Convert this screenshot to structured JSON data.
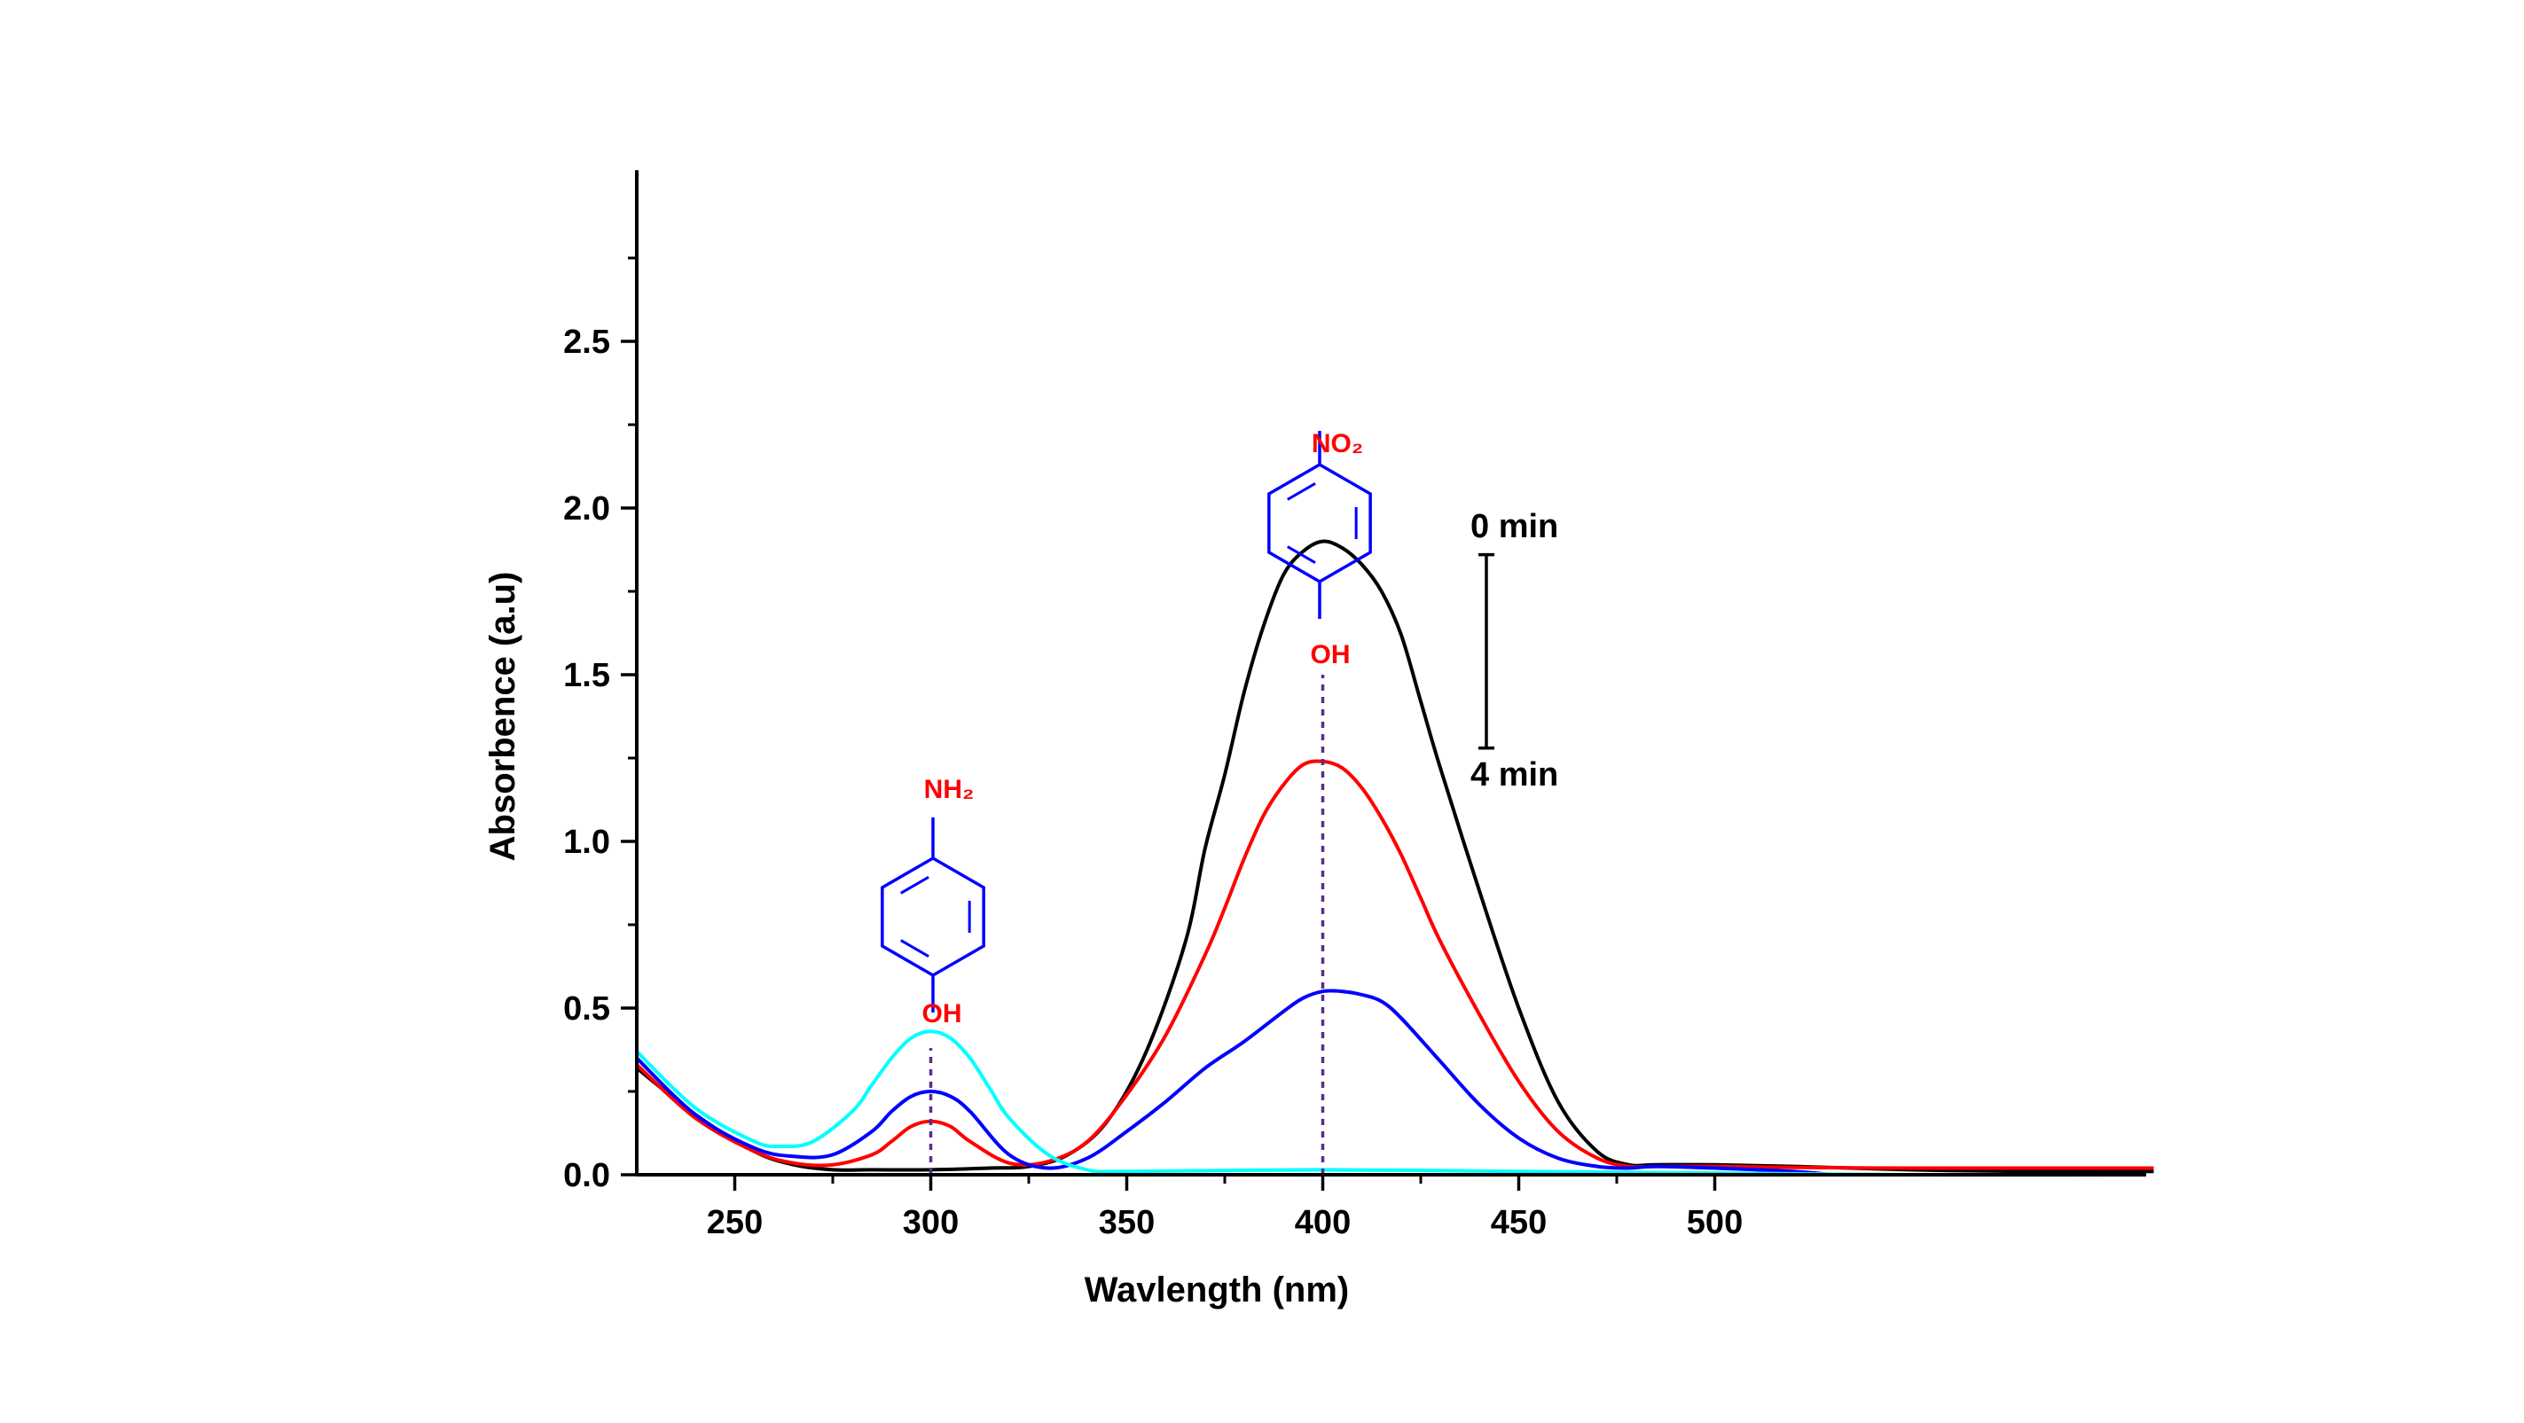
{
  "chart_data": {
    "type": "line",
    "title": "",
    "xlabel": "Wavlength (nm)",
    "ylabel": "Absorbence (a.u)",
    "xlim": [
      225,
      612
    ],
    "ylim": [
      0,
      3.0
    ],
    "xticks_major": [
      250,
      300,
      350,
      400,
      450,
      500
    ],
    "xticks_minor": [
      275,
      325,
      375,
      425,
      475
    ],
    "yticks_labeled": [
      0.0,
      0.5,
      1.0,
      1.5,
      2.0,
      2.5
    ],
    "yticks_labels": [
      "0.0",
      "0.5",
      "1.0",
      "1.5",
      "2.0",
      "2.5"
    ],
    "yticks_minor": [
      0.25,
      0.75,
      1.25,
      1.75,
      2.25,
      2.75
    ],
    "grid": false,
    "legend": "none",
    "series": [
      {
        "color": "#000000",
        "x": [
          225,
          240,
          255,
          265,
          275,
          285,
          300,
          315,
          325,
          335,
          345,
          355,
          365,
          370,
          375,
          380,
          385,
          390,
          395,
          400,
          405,
          410,
          415,
          420,
          425,
          430,
          440,
          450,
          460,
          470,
          478,
          485,
          500,
          520,
          550,
          580,
          612
        ],
        "y": [
          0.32,
          0.18,
          0.07,
          0.03,
          0.015,
          0.015,
          0.015,
          0.02,
          0.025,
          0.06,
          0.16,
          0.37,
          0.7,
          0.98,
          1.2,
          1.45,
          1.65,
          1.8,
          1.87,
          1.9,
          1.88,
          1.83,
          1.75,
          1.62,
          1.42,
          1.22,
          0.85,
          0.5,
          0.22,
          0.07,
          0.03,
          0.03,
          0.03,
          0.025,
          0.015,
          0.01,
          0.01
        ]
      },
      {
        "color": "#ff0000",
        "x": [
          225,
          240,
          255,
          265,
          275,
          285,
          290,
          295,
          300,
          305,
          310,
          320,
          330,
          340,
          350,
          360,
          370,
          375,
          380,
          385,
          390,
          395,
          400,
          405,
          410,
          415,
          420,
          425,
          430,
          440,
          450,
          460,
          470,
          478,
          485,
          500,
          520,
          550,
          580,
          612
        ],
        "y": [
          0.33,
          0.17,
          0.07,
          0.035,
          0.03,
          0.06,
          0.1,
          0.145,
          0.16,
          0.145,
          0.1,
          0.035,
          0.04,
          0.1,
          0.24,
          0.42,
          0.66,
          0.8,
          0.95,
          1.08,
          1.17,
          1.23,
          1.24,
          1.22,
          1.16,
          1.07,
          0.96,
          0.83,
          0.7,
          0.48,
          0.28,
          0.13,
          0.05,
          0.025,
          0.025,
          0.025,
          0.022,
          0.02,
          0.02,
          0.02
        ]
      },
      {
        "color": "#0000ff",
        "x": [
          225,
          240,
          255,
          265,
          275,
          285,
          290,
          295,
          300,
          305,
          310,
          320,
          330,
          340,
          350,
          360,
          370,
          380,
          390,
          395,
          400,
          405,
          410,
          415,
          420,
          430,
          440,
          450,
          460,
          470,
          478,
          485,
          500,
          520,
          530
        ],
        "y": [
          0.35,
          0.18,
          0.08,
          0.055,
          0.06,
          0.13,
          0.19,
          0.235,
          0.25,
          0.235,
          0.19,
          0.06,
          0.02,
          0.05,
          0.13,
          0.22,
          0.32,
          0.4,
          0.49,
          0.53,
          0.55,
          0.55,
          0.54,
          0.52,
          0.47,
          0.34,
          0.21,
          0.11,
          0.05,
          0.025,
          0.02,
          0.025,
          0.02,
          0.01,
          0.0
        ]
      },
      {
        "color": "#00ffff",
        "x": [
          225,
          240,
          255,
          262,
          270,
          280,
          285,
          290,
          295,
          300,
          305,
          310,
          315,
          320,
          330,
          340,
          350,
          400,
          450,
          500,
          550,
          600
        ],
        "y": [
          0.37,
          0.2,
          0.1,
          0.085,
          0.1,
          0.19,
          0.27,
          0.35,
          0.41,
          0.43,
          0.41,
          0.35,
          0.26,
          0.17,
          0.06,
          0.015,
          0.01,
          0.015,
          0.01,
          0.005,
          0.0,
          0.0
        ]
      }
    ],
    "markers": [
      {
        "x": 300,
        "y_from": 0.0,
        "y_to": 0.38,
        "style": "dashed",
        "color": "#5a2d8c"
      },
      {
        "x": 400,
        "y_from": 0.0,
        "y_to": 1.5,
        "style": "dashed",
        "color": "#5a2d8c"
      }
    ],
    "annotations": {
      "top_time": "0 min",
      "bottom_time": "4 min",
      "time_bar_top_y": 1.86,
      "time_bar_bottom_y": 1.28,
      "mol1_top": "NH₂",
      "mol1_bottom": "OH",
      "mol2_top": "NO₂",
      "mol2_bottom": "OH"
    },
    "colors": {
      "axis": "#000000",
      "ring": "#0000ff",
      "substituent": "#ff0000",
      "marker": "#5a2d8c"
    }
  }
}
